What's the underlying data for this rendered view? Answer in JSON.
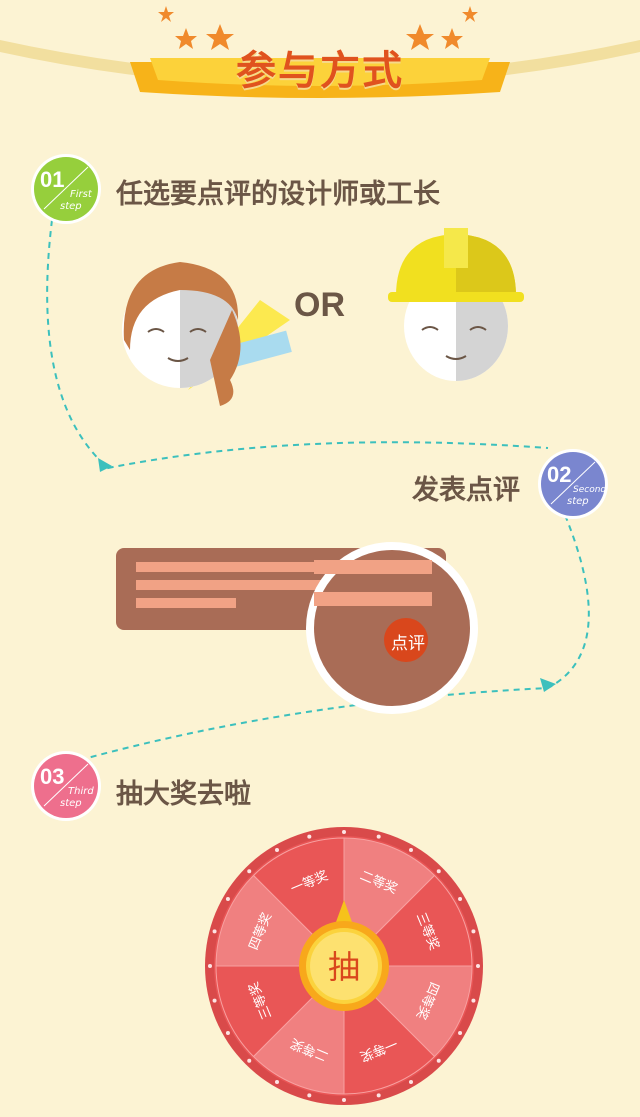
{
  "header": {
    "title": "参与方式"
  },
  "steps": [
    {
      "number": "01",
      "en_line1": "First",
      "en_line2": "step",
      "text": "任选要点评的设计师或工长",
      "color": "#96cf3c"
    },
    {
      "number": "02",
      "en_line1": "Second",
      "en_line2": "step",
      "text": "发表点评",
      "color": "#7a86cf"
    },
    {
      "number": "03",
      "en_line1": "Third",
      "en_line2": "step",
      "text": "抽大奖去啦",
      "color": "#ee6f8d"
    }
  ],
  "illustration": {
    "or_text": "OR",
    "review_button": "点评"
  },
  "wheel": {
    "center_label": "抽",
    "prizes": [
      "一等奖",
      "二等奖",
      "三等奖",
      "四等奖",
      "一等奖",
      "二等奖",
      "三等奖",
      "四等奖"
    ]
  },
  "colors": {
    "accent": "#e0521e",
    "wheel_dark": "#e95656",
    "wheel_light": "#f08080",
    "text": "#6b5646"
  }
}
